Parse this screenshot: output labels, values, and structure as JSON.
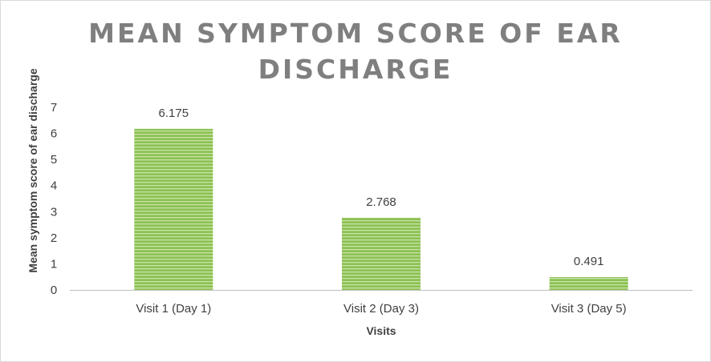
{
  "chart_data": {
    "type": "bar",
    "title": "MEAN SYMPTOM SCORE OF EAR DISCHARGE",
    "xlabel": "Visits",
    "ylabel": "Mean symptom score of ear discharge",
    "categories": [
      "Visit 1 (Day 1)",
      "Visit 2 (Day 3)",
      "Visit 3 (Day 5)"
    ],
    "values": [
      6.175,
      2.768,
      0.491
    ],
    "data_labels": [
      "6.175",
      "2.768",
      "0.491"
    ],
    "ylim": [
      0,
      7
    ],
    "yticks": [
      "0",
      "1",
      "2",
      "3",
      "4",
      "5",
      "6",
      "7"
    ],
    "grid": false,
    "legend": "none",
    "colors": {
      "bar": "#8cc152",
      "bar_stripe": "#c9e3a8",
      "axis": "#bfbfbf",
      "title": "#7f7f7f"
    }
  }
}
